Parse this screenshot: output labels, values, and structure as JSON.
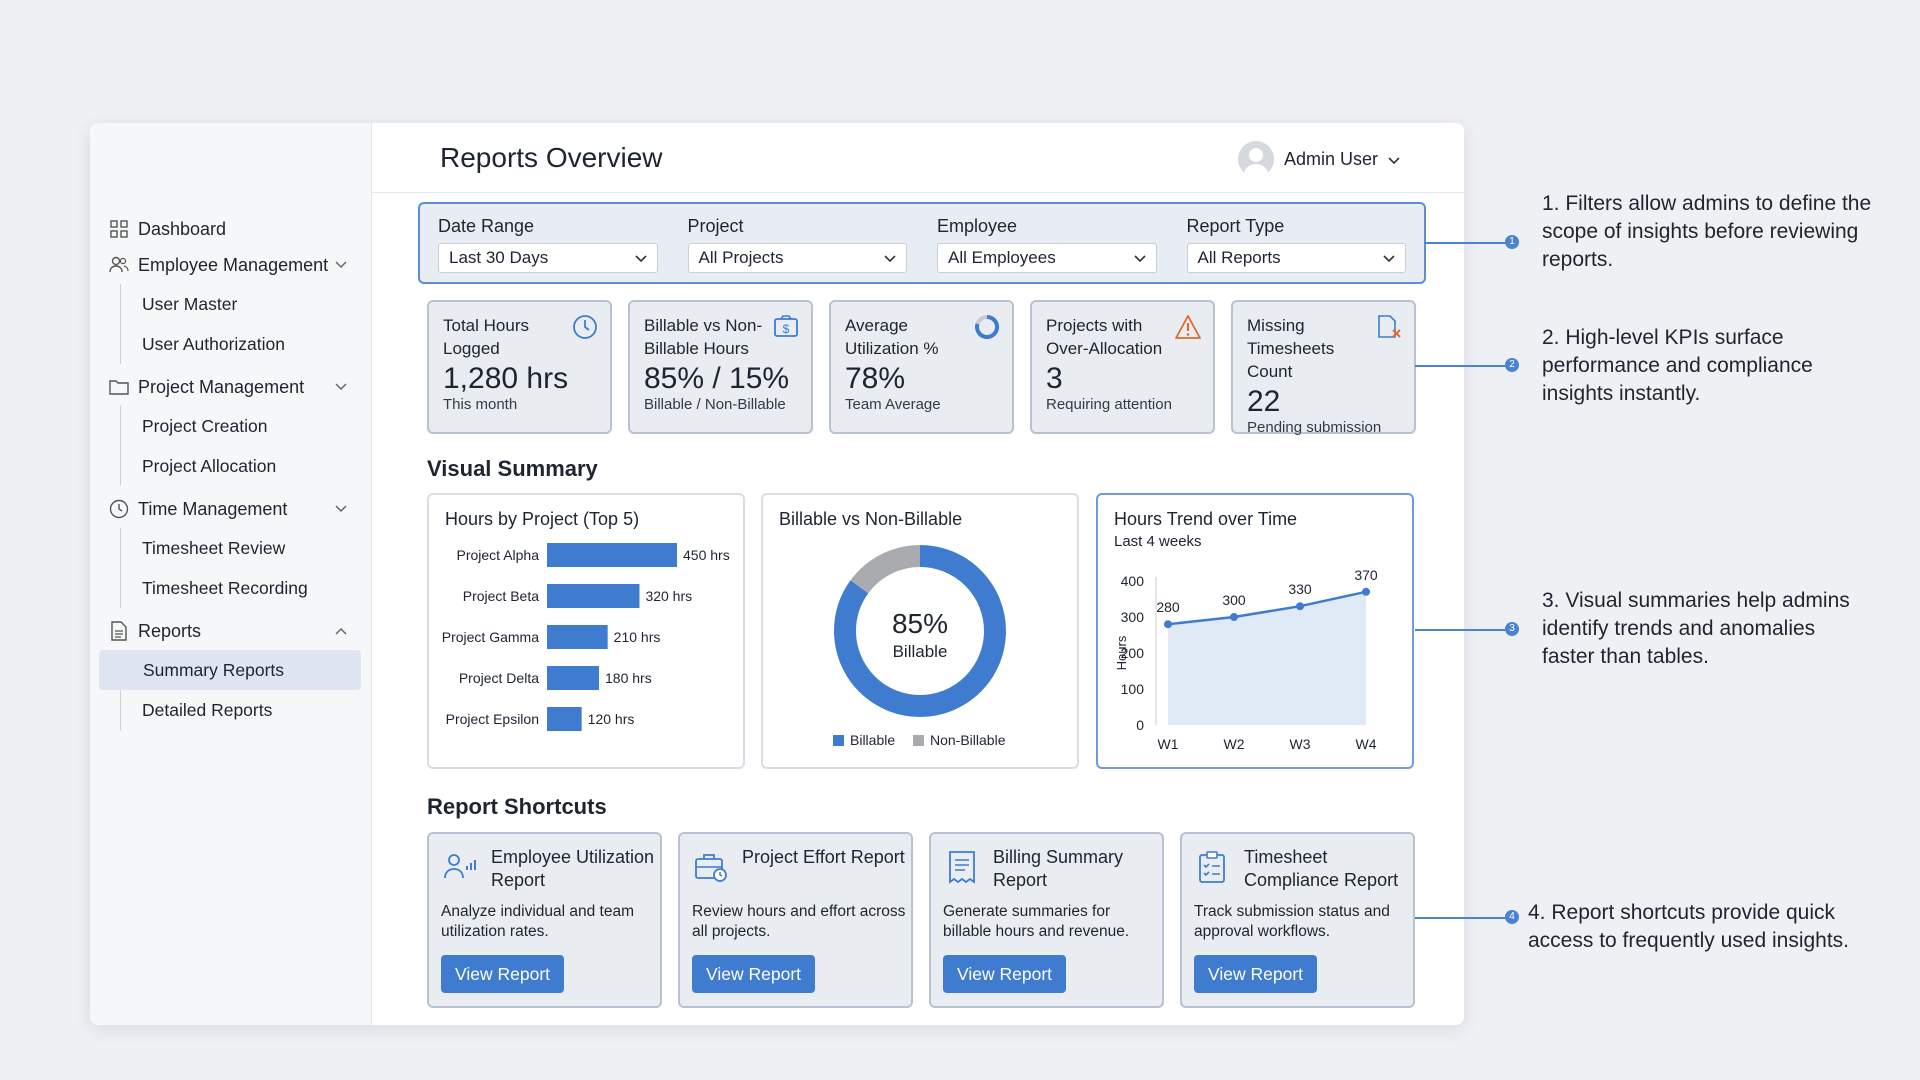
{
  "sidebar": {
    "dashboard": "Dashboard",
    "groups": [
      {
        "label": "Employee Management",
        "items": [
          "User Master",
          "User Authorization"
        ]
      },
      {
        "label": "Project Management",
        "items": [
          "Project Creation",
          "Project Allocation"
        ]
      },
      {
        "label": "Time Management",
        "items": [
          "Timesheet Review",
          "Timesheet Recording"
        ]
      },
      {
        "label": "Reports",
        "items": [
          "Summary Reports",
          "Detailed Reports"
        ]
      }
    ]
  },
  "header": {
    "title": "Reports Overview",
    "user": "Admin User"
  },
  "filters": [
    {
      "label": "Date Range",
      "value": "Last 30 Days"
    },
    {
      "label": "Project",
      "value": "All Projects"
    },
    {
      "label": "Employee",
      "value": "All Employees"
    },
    {
      "label": "Report Type",
      "value": "All Reports"
    }
  ],
  "kpis": [
    {
      "title": "Total Hours Logged",
      "value": "1,280 hrs",
      "sub": "This month",
      "icon": "clock-icon"
    },
    {
      "title": "Billable vs Non-Billable Hours",
      "value": "85% / 15%",
      "sub": "Billable / Non-Billable",
      "icon": "dollar-icon"
    },
    {
      "title": "Average Utilization %",
      "value": "78%",
      "sub": "Team Average",
      "icon": "progress-ring-icon"
    },
    {
      "title": "Projects with Over-Allocation",
      "value": "3",
      "sub": "Requiring attention",
      "icon": "warning-icon"
    },
    {
      "title": "Missing Timesheets Count",
      "value": "22",
      "sub": "Pending submission",
      "icon": "missing-file-icon"
    }
  ],
  "visual_summary_title": "Visual Summary",
  "report_shortcuts_title": "Report Shortcuts",
  "colors": {
    "accent": "#3f7ccf",
    "nonbillable": "#a9abae",
    "warning": "#e06a2c"
  },
  "chart_data": [
    {
      "type": "bar",
      "title": "Hours by Project (Top 5)",
      "categories": [
        "Project Alpha",
        "Project Beta",
        "Project Gamma",
        "Project Delta",
        "Project Epsilon"
      ],
      "values": [
        450,
        320,
        210,
        180,
        120
      ],
      "labels": [
        "450 hrs",
        "320 hrs",
        "210 hrs",
        "180 hrs",
        "120 hrs"
      ]
    },
    {
      "type": "pie",
      "title": "Billable vs Non-Billable",
      "center_value": "85%",
      "center_label": "Billable",
      "categories": [
        "Billable",
        "Non-Billable"
      ],
      "values": [
        85,
        15
      ]
    },
    {
      "type": "area",
      "title": "Hours Trend over Time",
      "subtitle": "Last 4 weeks",
      "ylabel": "Hours",
      "categories": [
        "W1",
        "W2",
        "W3",
        "W4"
      ],
      "values": [
        280,
        300,
        330,
        370
      ],
      "yticks": [
        0,
        100,
        200,
        300,
        400
      ],
      "ylim": [
        0,
        400
      ]
    }
  ],
  "shortcuts": [
    {
      "title": "Employee Utilization Report",
      "desc": "Analyze individual and team utilization rates.",
      "button": "View Report"
    },
    {
      "title": "Project Effort Report",
      "desc": "Review hours and effort across all projects.",
      "button": "View Report"
    },
    {
      "title": "Billing Summary Report",
      "desc": "Generate summaries for billable hours and revenue.",
      "button": "View Report"
    },
    {
      "title": "Timesheet Compliance Report",
      "desc": "Track submission status and approval workflows.",
      "button": "View Report"
    }
  ],
  "callouts": [
    {
      "num": "1",
      "text": "1. Filters allow admins to define the scope of insights before reviewing reports."
    },
    {
      "num": "2",
      "text": "2. High-level KPIs surface performance and compliance insights instantly."
    },
    {
      "num": "3",
      "text": "3. Visual summaries help admins identify trends and anomalies faster than tables."
    },
    {
      "num": "4",
      "text": "4. Report shortcuts provide quick access to frequently used insights."
    }
  ]
}
